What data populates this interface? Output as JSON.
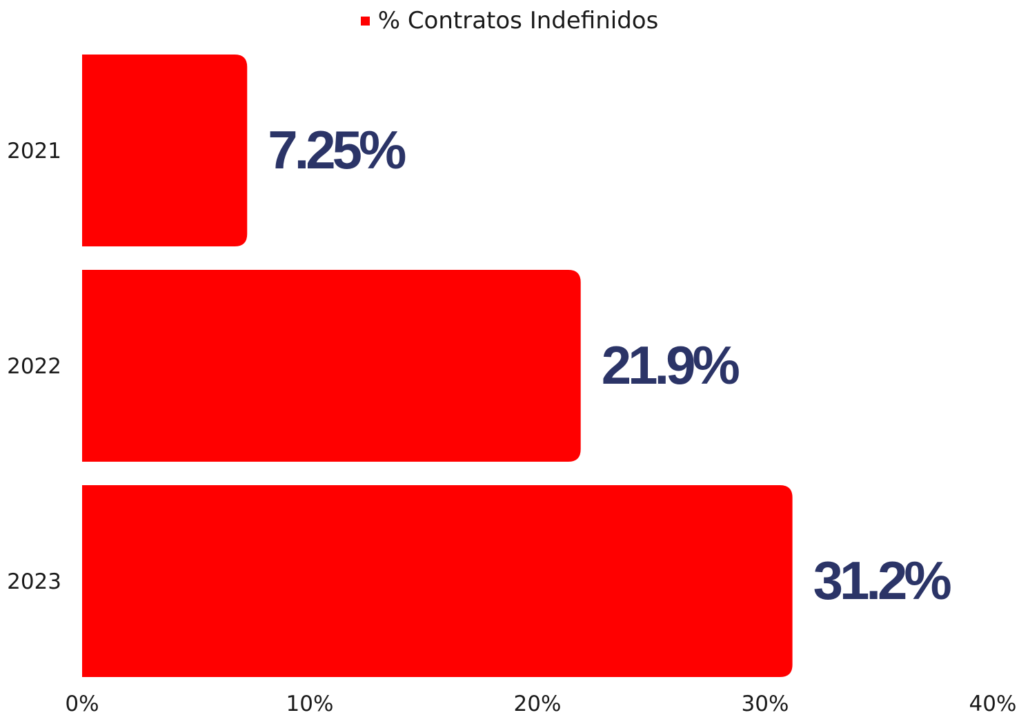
{
  "chart_data": {
    "type": "bar",
    "orientation": "horizontal",
    "categories": [
      "2021",
      "2022",
      "2023"
    ],
    "series": [
      {
        "name": "% Contratos Indefinidos",
        "values": [
          7.25,
          21.9,
          31.2
        ],
        "color": "#ff0000"
      }
    ],
    "data_labels": [
      "7.25%",
      "21.9%",
      "31.2%"
    ],
    "x_ticks": [
      "0%",
      "10%",
      "20%",
      "30%",
      "40%"
    ],
    "xlim": [
      0,
      40
    ],
    "legend_position": "top-center",
    "label_color": "#2b3467",
    "grid": false
  }
}
